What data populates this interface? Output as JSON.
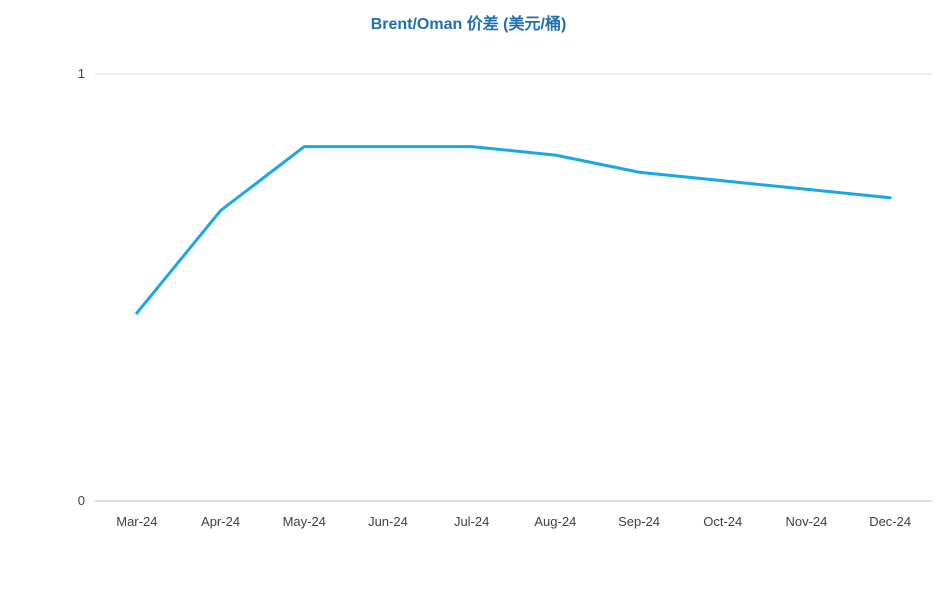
{
  "chart_data": {
    "type": "line",
    "title": "Brent/Oman 价差 (美元/桶)",
    "xlabel": "",
    "ylabel": "",
    "categories": [
      "Mar-24",
      "Apr-24",
      "May-24",
      "Jun-24",
      "Jul-24",
      "Aug-24",
      "Sep-24",
      "Oct-24",
      "Nov-24",
      "Dec-24"
    ],
    "series": [
      {
        "values": [
          0.44,
          0.68,
          0.83,
          0.83,
          0.83,
          0.81,
          0.77,
          0.75,
          0.73,
          0.71
        ],
        "color": "#1aa7e6"
      }
    ],
    "ylim": [
      0,
      1
    ],
    "yticks": [
      "0",
      "1"
    ],
    "grid": true,
    "legend": "none"
  }
}
